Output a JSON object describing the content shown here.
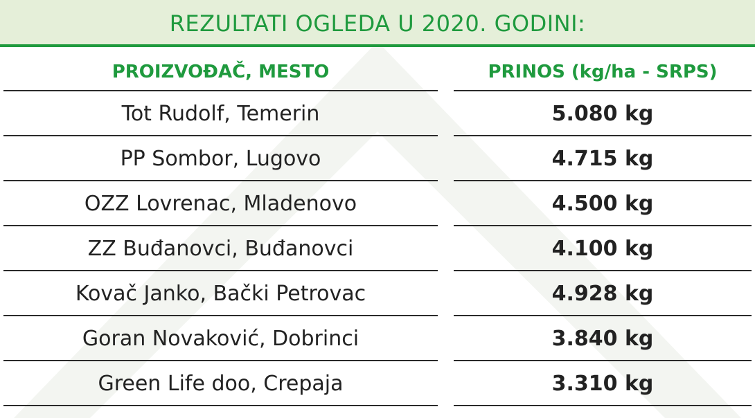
{
  "header": {
    "title": "REZULTATI OGLEDA U 2020. GODINI:"
  },
  "table": {
    "columns": [
      "PROIZVOĐAČ, MESTO",
      "PRINOS (kg/ha - SRPS)"
    ],
    "rows": [
      [
        "Tot Rudolf, Temerin",
        "5.080 kg"
      ],
      [
        "PP Sombor, Lugovo",
        "4.715 kg"
      ],
      [
        "OZZ Lovrenac, Mladenovo",
        "4.500 kg"
      ],
      [
        "ZZ Buđanovci, Buđanovci",
        "4.100 kg"
      ],
      [
        "Kovač Janko, Bački Petrovac",
        "4.928 kg"
      ],
      [
        "Goran Novaković, Dobrinci",
        "3.840 kg"
      ],
      [
        "Green Life doo, Crepaja",
        "3.310 kg"
      ]
    ]
  }
}
